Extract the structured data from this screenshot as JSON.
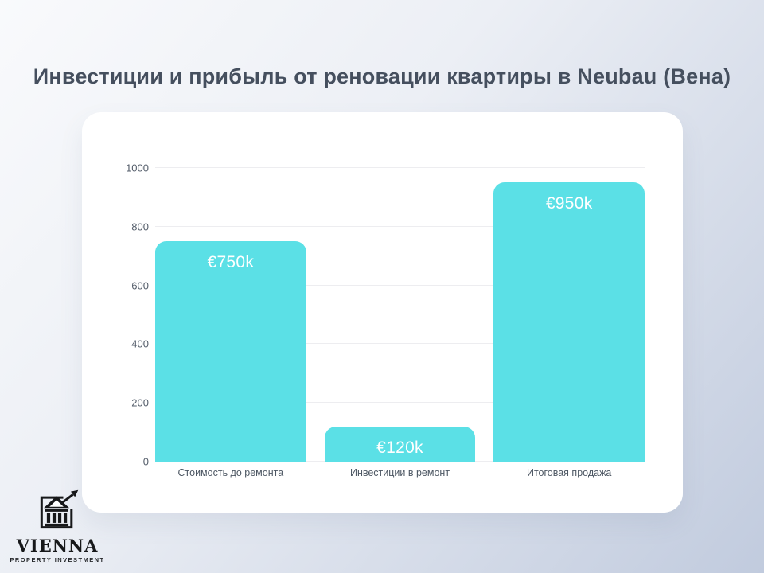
{
  "slide": {
    "title": "Инвестиции и прибыль от реновации квартиры в Neubau (Вена)"
  },
  "logo": {
    "name": "VIENNA",
    "tagline": "PROPERTY INVESTMENT",
    "icon": "bank-building-with-growth-arrow-icon"
  },
  "colors": {
    "bar": "#5be0e6",
    "title_text": "#454f5e",
    "axis_text": "#565f6c",
    "gridline": "#ededf0",
    "card_background": "#ffffff",
    "value_label_text": "#ffffff"
  },
  "chart_data": {
    "type": "bar",
    "title": "",
    "categories": [
      "Стоимость до ремонта",
      "Инвестиции в ремонт",
      "Итоговая продажа"
    ],
    "values": [
      750,
      120,
      950
    ],
    "value_labels": [
      "€750k",
      "€120k",
      "€950k"
    ],
    "ylim": [
      0,
      1000
    ],
    "yticks": [
      0,
      200,
      400,
      600,
      800,
      1000
    ],
    "xlabel": "",
    "ylabel": "",
    "grid": true,
    "legend": false
  }
}
